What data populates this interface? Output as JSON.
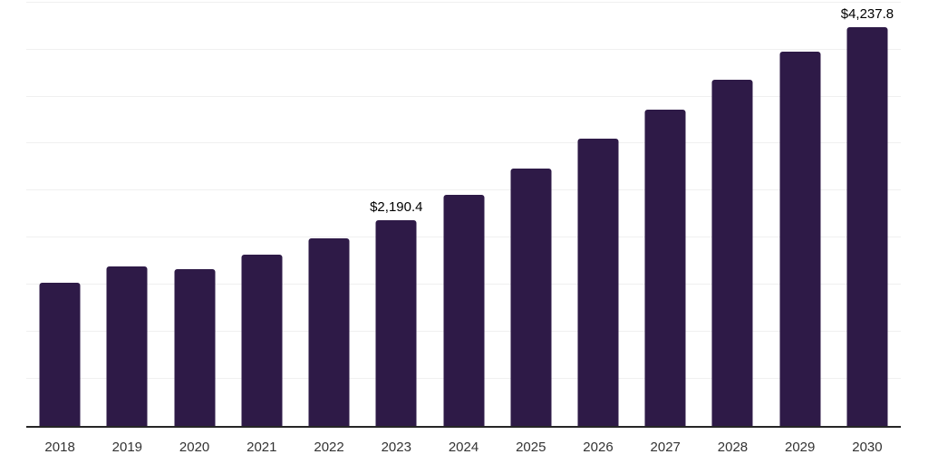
{
  "chart_data": {
    "type": "bar",
    "title": "",
    "xlabel": "",
    "ylabel": "",
    "categories": [
      "2018",
      "2019",
      "2020",
      "2021",
      "2022",
      "2023",
      "2024",
      "2025",
      "2026",
      "2027",
      "2028",
      "2029",
      "2030"
    ],
    "values": [
      1524,
      1691,
      1662,
      1822,
      1995,
      2190.4,
      2460,
      2736,
      3054,
      3359,
      3680,
      3978,
      4237.8
    ],
    "point_labels": [
      "",
      "",
      "",
      "",
      "",
      "$2,190.4",
      "",
      "",
      "",
      "",
      "",
      "",
      "$4,237.8"
    ],
    "ylim": [
      0,
      4500
    ],
    "grid_step": 500,
    "gridlines": "horizontal",
    "legend": "none",
    "colors": {
      "bar": "#2e1a47",
      "grid": "#f0f0f0",
      "axis": "#262626",
      "tick_label": "#333333",
      "data_label": "#000000",
      "background": "#ffffff"
    }
  }
}
